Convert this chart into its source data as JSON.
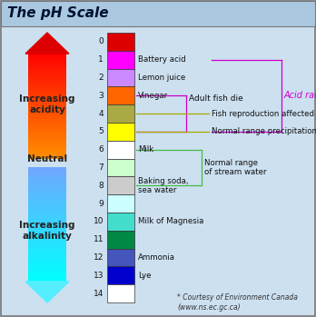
{
  "title": "The pH Scale",
  "bg_color": "#cce0f0",
  "header_color": "#b0cce0",
  "border_color": "#888888",
  "ph_colors": [
    "#dd0000",
    "#ff00ff",
    "#cc88ff",
    "#ff6600",
    "#aaaa44",
    "#ffff00",
    "#ffffff",
    "#ccffcc",
    "#cccccc",
    "#ccffff",
    "#44ddcc",
    "#008844",
    "#4455bb",
    "#0000cc",
    "#ffffff"
  ],
  "ph_labels": [
    "",
    "Battery acid",
    "Lemon juice",
    "Vinegar",
    "",
    "",
    "Milk",
    "",
    "Baking soda,\nsea water",
    "",
    "Milk of Magnesia",
    "",
    "Ammonia",
    "Lye",
    ""
  ],
  "courtesy": "* Courtesy of Environment Canada\n(www.ns.ec.gc.ca)"
}
